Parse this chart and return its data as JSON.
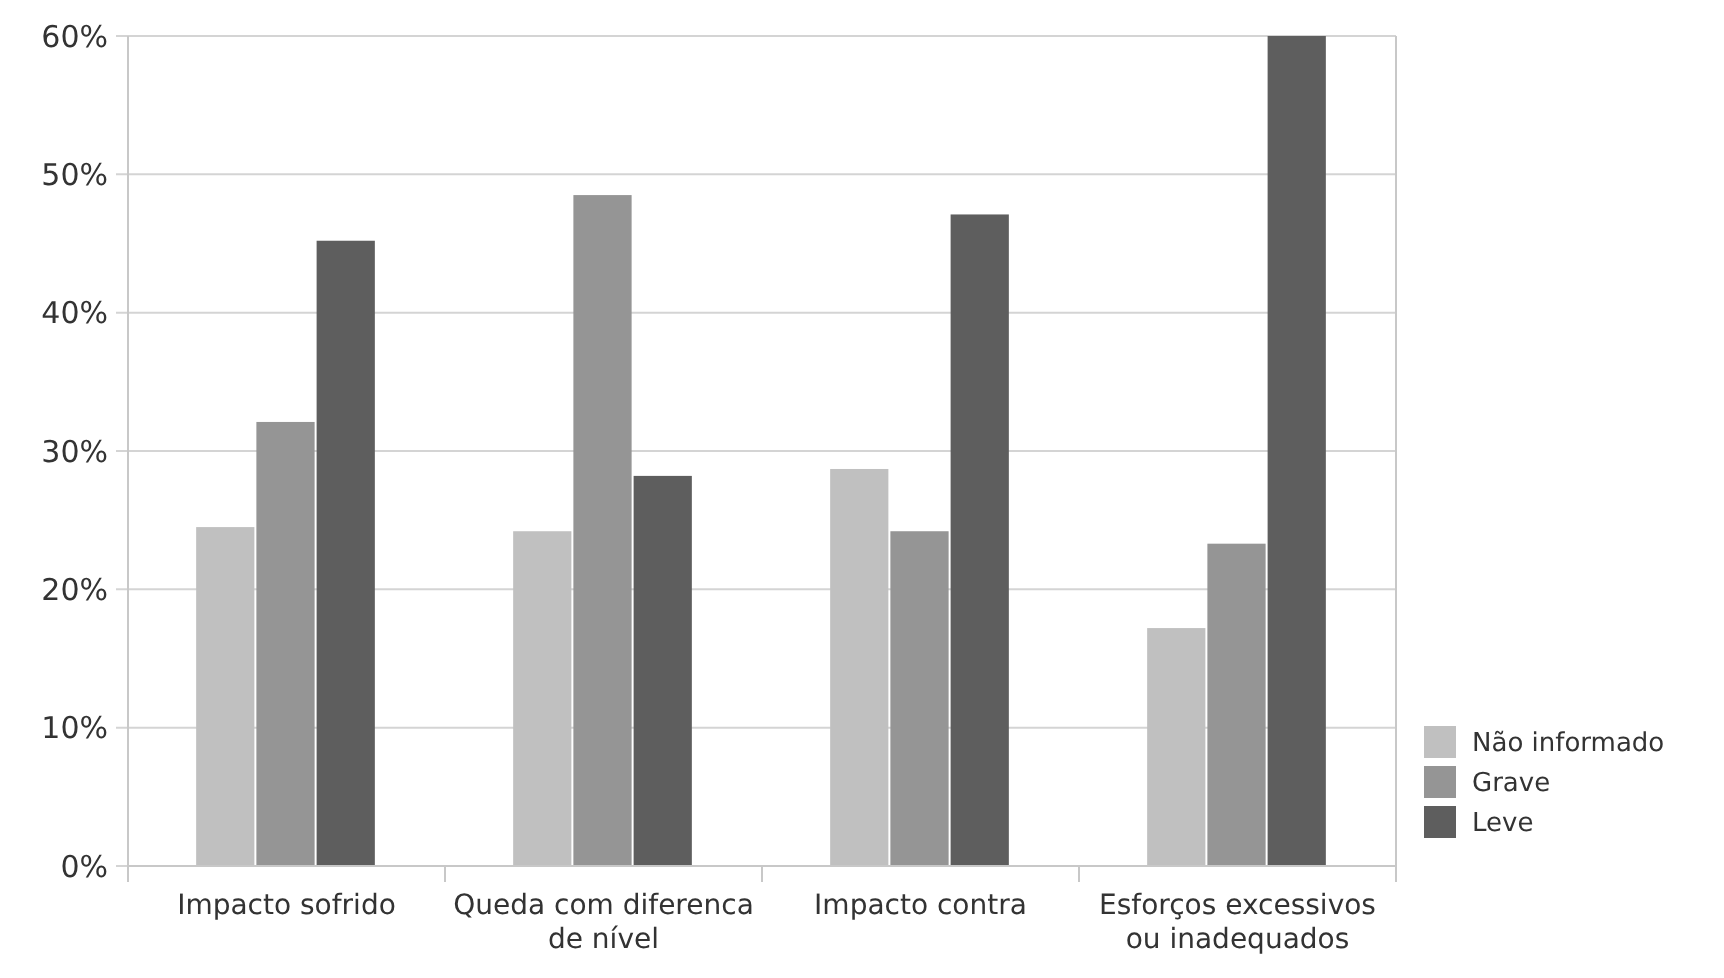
{
  "chart_data": {
    "type": "bar",
    "categories": [
      "Impacto sofrido",
      "Queda com diferenca de nível",
      "Impacto contra",
      "Esforços excessivos ou inadequados"
    ],
    "series": [
      {
        "name": "Não informado",
        "color": "#c0c0c0",
        "values": [
          24.5,
          24.2,
          28.7,
          17.2
        ]
      },
      {
        "name": "Grave",
        "color": "#959595",
        "values": [
          32.1,
          48.5,
          24.2,
          23.3
        ]
      },
      {
        "name": "Leve",
        "color": "#5e5e5e",
        "values": [
          45.2,
          28.2,
          47.1,
          60
        ]
      }
    ],
    "ylim": [
      0,
      60
    ],
    "yticks": [
      {
        "value": 0,
        "label": "0%"
      },
      {
        "value": 10,
        "label": "10%"
      },
      {
        "value": 20,
        "label": "20%"
      },
      {
        "value": 30,
        "label": "30%"
      },
      {
        "value": 40,
        "label": "40%"
      },
      {
        "value": 50,
        "label": "50%"
      },
      {
        "value": 60,
        "label": "60%"
      }
    ],
    "grid": "y",
    "legend": "right"
  }
}
